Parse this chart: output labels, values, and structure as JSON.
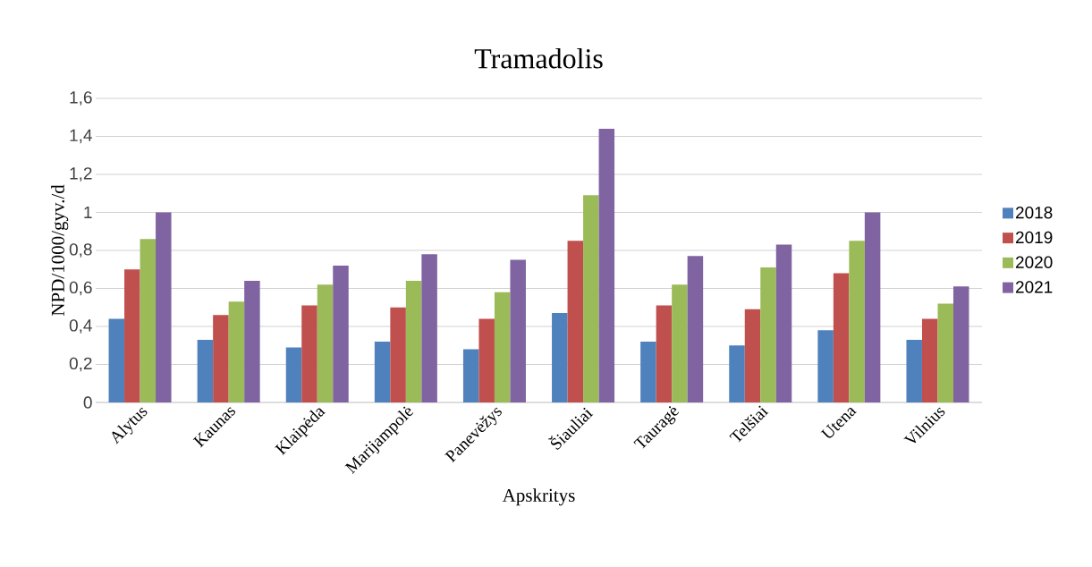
{
  "chart_data": {
    "type": "bar",
    "title": "Tramadolis",
    "xlabel": "Apskritys",
    "ylabel": "NPD/1000/gyv./d",
    "categories": [
      "Alytus",
      "Kaunas",
      "Klaipėda",
      "Marijampolė",
      "Panevėžys",
      "Šiauliai",
      "Tauragė",
      "Telšiai",
      "Utena",
      "Vilnius"
    ],
    "series": [
      {
        "name": "2018",
        "color": "#4f81bd",
        "values": [
          0.44,
          0.33,
          0.29,
          0.32,
          0.28,
          0.47,
          0.32,
          0.3,
          0.38,
          0.33
        ]
      },
      {
        "name": "2019",
        "color": "#c0504d",
        "values": [
          0.7,
          0.46,
          0.51,
          0.5,
          0.44,
          0.85,
          0.51,
          0.49,
          0.68,
          0.44
        ]
      },
      {
        "name": "2020",
        "color": "#9bbb59",
        "values": [
          0.86,
          0.53,
          0.62,
          0.64,
          0.58,
          1.09,
          0.62,
          0.71,
          0.85,
          0.52
        ]
      },
      {
        "name": "2021",
        "color": "#8064a2",
        "values": [
          1.0,
          0.64,
          0.72,
          0.78,
          0.75,
          1.44,
          0.77,
          0.83,
          1.0,
          0.61
        ]
      }
    ],
    "ylim": [
      0,
      1.6
    ],
    "yticks": [
      0,
      {
        "value": 0.2,
        "label": "0,2"
      },
      {
        "value": 0.4,
        "label": "0,4"
      },
      {
        "value": 0.6,
        "label": "0,6"
      },
      {
        "value": 0.8,
        "label": "0,8"
      },
      1,
      {
        "value": 1.2,
        "label": "1,2"
      },
      {
        "value": 1.4,
        "label": "1,4"
      },
      {
        "value": 1.6,
        "label": "1,6"
      }
    ],
    "grid": "y",
    "legend": "right"
  }
}
